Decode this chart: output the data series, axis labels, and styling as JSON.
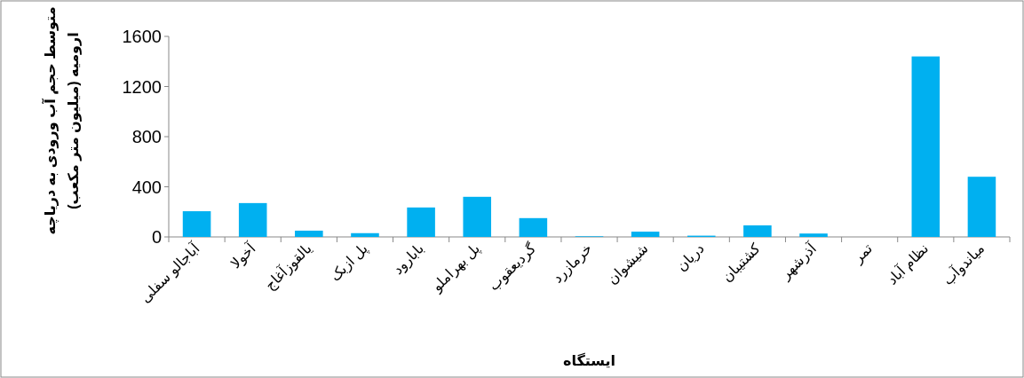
{
  "chart_data": {
    "type": "bar",
    "xlabel": "ایستگاه",
    "ylabel": "متوسط حجم آب ورودی به دریاچه ارومیه (میلیون متر مکعب)",
    "categories": [
      "آباجالو سفلی",
      "آخولا",
      "یالقوزآغاج",
      "پل ازبک",
      "بابارود",
      "پل بهراملو",
      "گردیعقوب",
      "خرمازرد",
      "شیشوان",
      "دریان",
      "کشتیبان",
      "آذرشهر",
      "تمر",
      "نظام آباد",
      "میاندوآب"
    ],
    "values": [
      205,
      270,
      50,
      30,
      235,
      320,
      150,
      5,
      42,
      10,
      92,
      27,
      null,
      1440,
      480
    ],
    "color": "#00b0f0",
    "ylim": [
      0,
      1600
    ],
    "yticks": [
      0,
      400,
      800,
      1200,
      1600
    ],
    "grid": false
  }
}
